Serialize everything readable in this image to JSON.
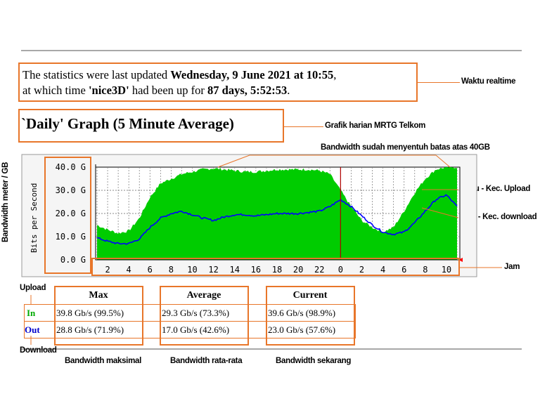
{
  "statistics": {
    "line1_prefix": "The statistics were last updated ",
    "line1_bold": "Wednesday, 9 June 2021 at 10:55",
    "line1_suffix": ",",
    "line2_prefix": "at which time ",
    "line2_host": "'nice3D'",
    "line2_mid": " had been up for ",
    "line2_uptime": "87 days, 5:52:53",
    "line2_suffix": "."
  },
  "graph_title": "`Daily' Graph (5 Minute Average)",
  "annotations": {
    "realtime": "Waktu realtime",
    "graph": "Grafik harian MRTG Telkom",
    "limit": "Bandwidth sudah menyentuh batas atas 40GB",
    "meter": "Bandwidth meter / GB",
    "green": "Hijau - Kec. Upload",
    "blue": "Biru - Kec. download",
    "hour": "Jam",
    "upload": "Upload",
    "download": "Download",
    "max": "Bandwidth maksimal",
    "avg": "Bandwidth rata-rata",
    "current": "Bandwidth sekarang"
  },
  "colors": {
    "in": "#00cc00",
    "out": "#0000ff",
    "annotation": "#e8762a",
    "now_marker": "#ff0000"
  },
  "chart_data": {
    "type": "area",
    "ylabel": "Bits per Second",
    "yticks": [
      "40.0 G",
      "30.0 G",
      "20.0 G",
      "10.0 G",
      "0.0 G"
    ],
    "ylim": [
      0,
      40
    ],
    "xticks": [
      "2",
      "4",
      "6",
      "8",
      "10",
      "12",
      "14",
      "16",
      "18",
      "20",
      "22",
      "0",
      "2",
      "4",
      "6",
      "8",
      "10"
    ],
    "x_hours": [
      1,
      2,
      3,
      4,
      5,
      6,
      7,
      8,
      9,
      10,
      11,
      12,
      13,
      14,
      15,
      16,
      17,
      18,
      19,
      20,
      21,
      22,
      23,
      0,
      1,
      2,
      3,
      4,
      5,
      6,
      7,
      8,
      9,
      10,
      11
    ],
    "series": [
      {
        "name": "In",
        "values": [
          15,
          13,
          11.5,
          12.5,
          18,
          27,
          33,
          35,
          37,
          38,
          39,
          39.5,
          39,
          38.5,
          38,
          38,
          38.5,
          39,
          39,
          39,
          39,
          38.5,
          37,
          30,
          23,
          17,
          14,
          12,
          14,
          21,
          29,
          35,
          39,
          40,
          40
        ]
      },
      {
        "name": "Out",
        "values": [
          9.5,
          8,
          7,
          7,
          9,
          14,
          18,
          20,
          21,
          19.5,
          18,
          17,
          18.5,
          19.5,
          19.5,
          19,
          19.5,
          20,
          20,
          20,
          20.5,
          21,
          23,
          26,
          23,
          19,
          15,
          12,
          11,
          12,
          16,
          21,
          26,
          28,
          23
        ]
      }
    ]
  },
  "stats_table": {
    "headers": [
      "Max",
      "Average",
      "Current"
    ],
    "rows": [
      {
        "label": "In",
        "max": "39.8 Gb/s (99.5%)",
        "average": "29.3 Gb/s (73.3%)",
        "current": "39.6 Gb/s (98.9%)"
      },
      {
        "label": "Out",
        "max": "28.8 Gb/s (71.9%)",
        "average": "17.0 Gb/s (42.6%)",
        "current": "23.0 Gb/s (57.6%)"
      }
    ]
  }
}
